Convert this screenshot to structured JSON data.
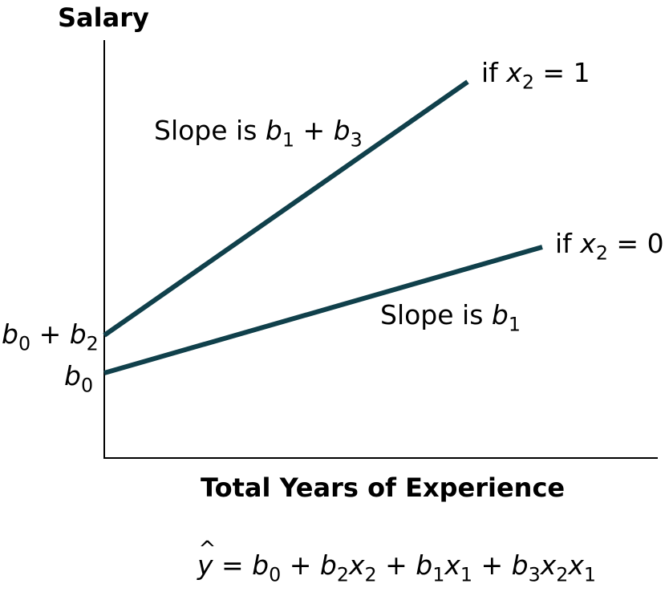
{
  "chart_data": {
    "type": "line",
    "ylabel": "Salary",
    "xlabel": "Total Years of Experience",
    "series": [
      {
        "label_pre": "if ",
        "var": "x",
        "sub": "2",
        "label_post": " = 1",
        "slope_pre": "Slope is ",
        "slope_terms": [
          {
            "v": "b",
            "s": "1"
          },
          {
            "op": " + "
          },
          {
            "v": "b",
            "s": "3"
          }
        ],
        "intercept_terms": [
          {
            "v": "b",
            "s": "0"
          },
          {
            "op": " + "
          },
          {
            "v": "b",
            "s": "2"
          }
        ],
        "color": "#10404b"
      },
      {
        "label_pre": "if ",
        "var": "x",
        "sub": "2",
        "label_post": " = 0",
        "slope_pre": "Slope is ",
        "slope_terms": [
          {
            "v": "b",
            "s": "1"
          }
        ],
        "intercept_terms": [
          {
            "v": "b",
            "s": "0"
          }
        ],
        "color": "#10404b"
      }
    ],
    "grid": false
  },
  "equation": {
    "lhs": "y",
    "hat": "^",
    "eq": " = ",
    "terms": [
      {
        "v": "b",
        "s": "0"
      },
      {
        "op": " + "
      },
      {
        "v": "b",
        "s": "2"
      },
      {
        "v": "x",
        "s": "2"
      },
      {
        "op": " + "
      },
      {
        "v": "b",
        "s": "1"
      },
      {
        "v": "x",
        "s": "1"
      },
      {
        "op": " + "
      },
      {
        "v": "b",
        "s": "3"
      },
      {
        "v": "x",
        "s": "2"
      },
      {
        "v": "x",
        "s": "1"
      }
    ]
  }
}
